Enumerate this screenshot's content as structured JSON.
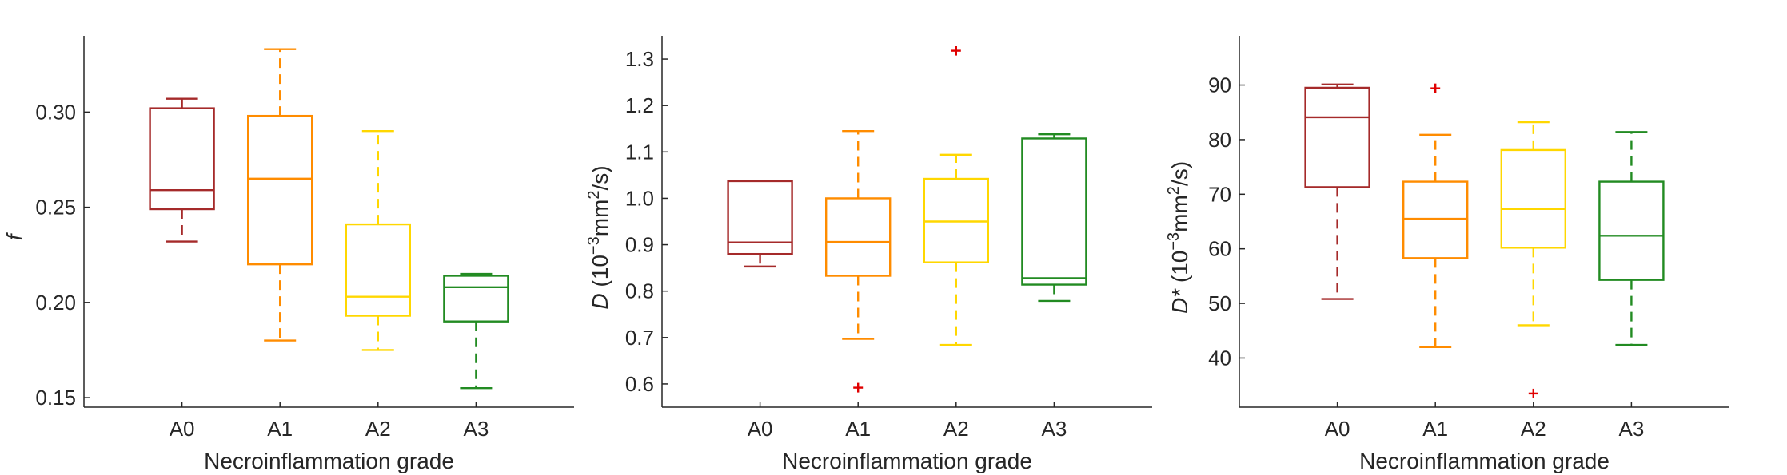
{
  "chart_data": [
    {
      "type": "box",
      "title": "",
      "xlabel": "Necroinflammation grade",
      "ylabel": {
        "base": "f"
      },
      "categories": [
        "A0",
        "A1",
        "A2",
        "A3"
      ],
      "colors": [
        "#a52a2a",
        "#ff8c00",
        "#ffd700",
        "#228b22"
      ],
      "ylim": [
        0.145,
        0.34
      ],
      "yticks": [
        0.15,
        0.2,
        0.25,
        0.3
      ],
      "ytick_labels": [
        "0.15",
        "0.20",
        "0.25",
        "0.30"
      ],
      "boxes": [
        {
          "whisker_low": 0.232,
          "q1": 0.249,
          "median": 0.259,
          "q3": 0.302,
          "whisker_high": 0.307,
          "outliers": []
        },
        {
          "whisker_low": 0.18,
          "q1": 0.22,
          "median": 0.265,
          "q3": 0.298,
          "whisker_high": 0.333,
          "outliers": []
        },
        {
          "whisker_low": 0.175,
          "q1": 0.193,
          "median": 0.203,
          "q3": 0.241,
          "whisker_high": 0.29,
          "outliers": []
        },
        {
          "whisker_low": 0.155,
          "q1": 0.19,
          "median": 0.208,
          "q3": 0.214,
          "whisker_high": 0.215,
          "outliers": []
        }
      ]
    },
    {
      "type": "box",
      "title": "",
      "xlabel": "Necroinflammation grade",
      "ylabel": {
        "base": "D",
        "prefix": " (10",
        "sup1": "−3",
        "mid": "mm",
        "sup2": "2",
        "suffix": "/s)"
      },
      "categories": [
        "A0",
        "A1",
        "A2",
        "A3"
      ],
      "colors": [
        "#a52a2a",
        "#ff8c00",
        "#ffd700",
        "#228b22"
      ],
      "ylim": [
        0.55,
        1.35
      ],
      "yticks": [
        0.6,
        0.7,
        0.8,
        0.9,
        1.0,
        1.1,
        1.2,
        1.3
      ],
      "ytick_labels": [
        "0.6",
        "0.7",
        "0.8",
        "0.9",
        "1.0",
        "1.1",
        "1.2",
        "1.3"
      ],
      "boxes": [
        {
          "whisker_low": 0.853,
          "q1": 0.88,
          "median": 0.905,
          "q3": 1.037,
          "whisker_high": 1.038,
          "outliers": []
        },
        {
          "whisker_low": 0.697,
          "q1": 0.833,
          "median": 0.906,
          "q3": 1.0,
          "whisker_high": 1.145,
          "outliers": [
            0.592
          ]
        },
        {
          "whisker_low": 0.684,
          "q1": 0.862,
          "median": 0.95,
          "q3": 1.042,
          "whisker_high": 1.094,
          "outliers": [
            1.318
          ]
        },
        {
          "whisker_low": 0.779,
          "q1": 0.814,
          "median": 0.828,
          "q3": 1.129,
          "whisker_high": 1.138,
          "outliers": []
        }
      ]
    },
    {
      "type": "box",
      "title": "",
      "xlabel": "Necroinflammation grade",
      "ylabel": {
        "base": "D*",
        "prefix": " (10",
        "sup1": "−3",
        "mid": "mm",
        "sup2": "2",
        "suffix": "/s)"
      },
      "categories": [
        "A0",
        "A1",
        "A2",
        "A3"
      ],
      "colors": [
        "#a52a2a",
        "#ff8c00",
        "#ffd700",
        "#228b22"
      ],
      "ylim": [
        31,
        99
      ],
      "yticks": [
        40,
        50,
        60,
        70,
        80,
        90
      ],
      "ytick_labels": [
        "40",
        "50",
        "60",
        "70",
        "80",
        "90"
      ],
      "boxes": [
        {
          "whisker_low": 50.8,
          "q1": 71.3,
          "median": 84.1,
          "q3": 89.5,
          "whisker_high": 90.1,
          "outliers": []
        },
        {
          "whisker_low": 42.0,
          "q1": 58.3,
          "median": 65.5,
          "q3": 72.3,
          "whisker_high": 80.9,
          "outliers": [
            89.4
          ]
        },
        {
          "whisker_low": 46.0,
          "q1": 60.2,
          "median": 67.3,
          "q3": 78.1,
          "whisker_high": 83.2,
          "outliers": [
            33.5
          ]
        },
        {
          "whisker_low": 42.4,
          "q1": 54.3,
          "median": 62.4,
          "q3": 72.3,
          "whisker_high": 81.4,
          "outliers": []
        }
      ]
    }
  ]
}
